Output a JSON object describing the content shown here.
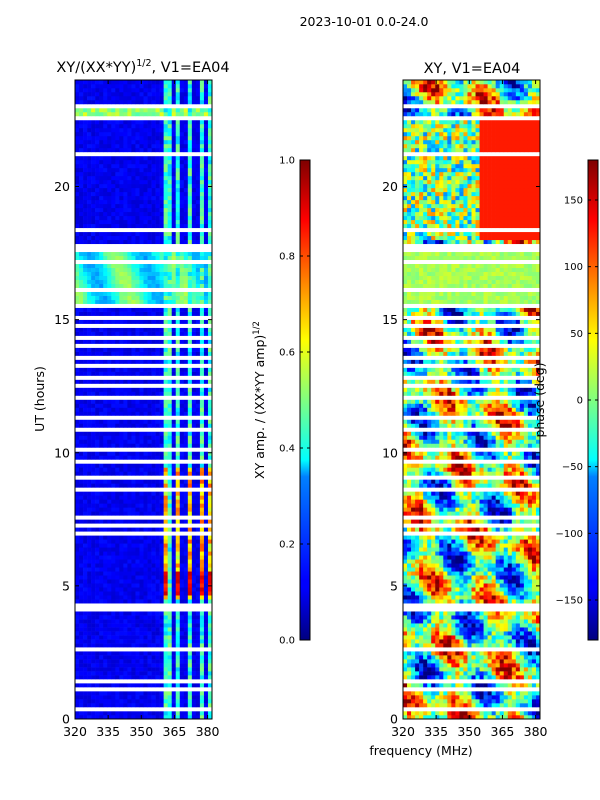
{
  "figure": {
    "suptitle": "2023-10-01 0.0-24.0",
    "xlabel": "frequency (MHz)"
  },
  "chart_data": [
    {
      "type": "heatmap",
      "title_main": "XY/(XX*YY)",
      "title_sup": "1/2",
      "title_tail": ", V1=EA04",
      "ylabel": "UT (hours)",
      "xlim": [
        320,
        382
      ],
      "ylim": [
        0,
        24
      ],
      "xticks": [
        320,
        335,
        350,
        365,
        380
      ],
      "yticks": [
        0,
        5,
        10,
        15,
        20
      ],
      "colorbar": {
        "label_main": "XY amp. / (XX*YY amp)",
        "label_sup": "1/2",
        "range": [
          0.0,
          1.0
        ],
        "ticks": [
          "0.0",
          "0.2",
          "0.4",
          "0.6",
          "0.8",
          "1.0"
        ],
        "tick_values": [
          0.0,
          0.2,
          0.4,
          0.6,
          0.8,
          1.0
        ]
      }
    },
    {
      "type": "heatmap",
      "title_main": "XY, V1=EA04",
      "ylabel": "",
      "xlim": [
        320,
        382
      ],
      "ylim": [
        0,
        24
      ],
      "xticks": [
        320,
        335,
        350,
        365,
        380
      ],
      "yticks": [
        0,
        5,
        10,
        15,
        20
      ],
      "colorbar": {
        "label_main": "phase (deg)",
        "range": [
          -180,
          180
        ],
        "ticks": [
          "−150",
          "−100",
          "−50",
          "0",
          "50",
          "100",
          "150"
        ],
        "tick_values": [
          -150,
          -100,
          -50,
          0,
          50,
          100,
          150
        ]
      }
    }
  ]
}
